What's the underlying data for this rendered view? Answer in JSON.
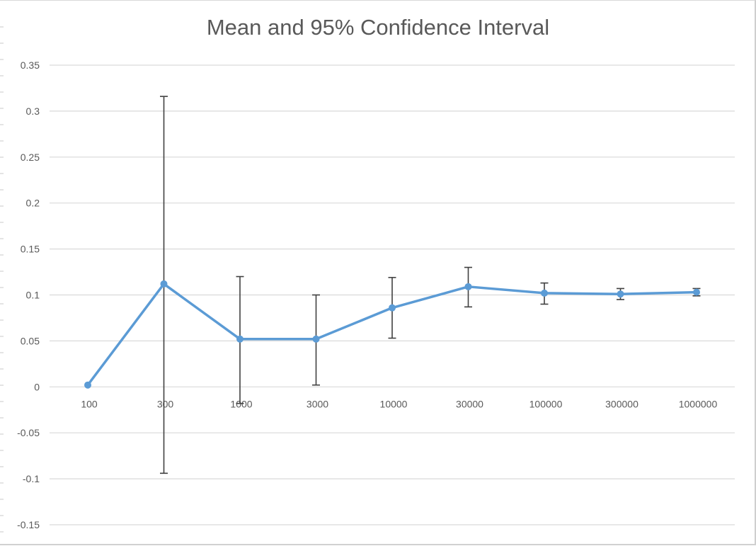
{
  "chart_data": {
    "type": "line",
    "title": "Mean and 95% Confidence Interval",
    "xlabel": "",
    "ylabel": "",
    "categories": [
      "100",
      "300",
      "1000",
      "3000",
      "10000",
      "30000",
      "100000",
      "300000",
      "1000000"
    ],
    "series": [
      {
        "values": [
          0.002,
          0.112,
          0.052,
          0.052,
          0.086,
          0.109,
          0.102,
          0.101,
          0.103
        ],
        "error_low": [
          0.002,
          -0.094,
          -0.018,
          0.002,
          0.053,
          0.087,
          0.09,
          0.095,
          0.099
        ],
        "error_high": [
          0.002,
          0.316,
          0.12,
          0.1,
          0.119,
          0.13,
          0.113,
          0.107,
          0.107
        ],
        "color": "#5b9bd5"
      }
    ],
    "ylim": [
      -0.15,
      0.35
    ],
    "yticks": [
      "0.35",
      "0.3",
      "0.25",
      "0.2",
      "0.15",
      "0.1",
      "0.05",
      "0",
      "-0.05",
      "-0.1",
      "-0.15"
    ],
    "ytick_values": [
      0.35,
      0.3,
      0.25,
      0.2,
      0.15,
      0.1,
      0.05,
      0,
      -0.05,
      -0.1,
      -0.15
    ],
    "grid": true,
    "legend": "none",
    "error_bar_color": "#404040",
    "gridline_color": "#d9d9d9"
  }
}
